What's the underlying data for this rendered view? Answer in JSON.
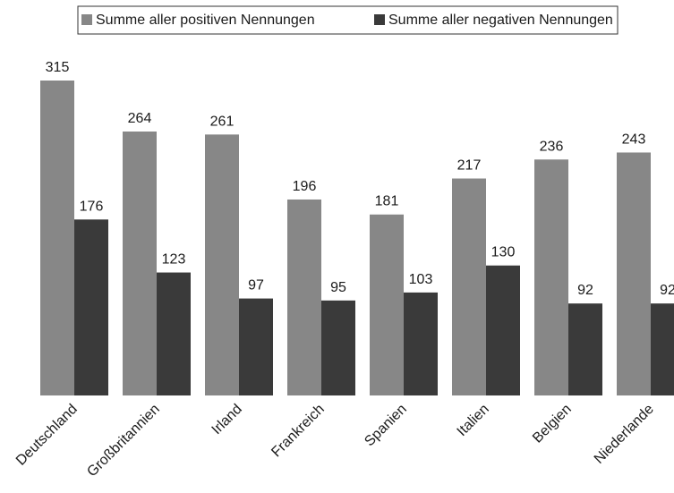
{
  "chart_data": {
    "type": "bar",
    "categories": [
      "Deutschland",
      "Großbritannien",
      "Irland",
      "Frankreich",
      "Spanien",
      "Italien",
      "Belgien",
      "Niederlande"
    ],
    "series": [
      {
        "name": "Summe aller positiven Nennungen",
        "color": "#878787",
        "values": [
          315,
          264,
          261,
          196,
          181,
          217,
          236,
          243
        ]
      },
      {
        "name": "Summe aller negativen Nennungen",
        "color": "#3a3a3a",
        "values": [
          176,
          123,
          97,
          95,
          103,
          130,
          92,
          92
        ]
      }
    ],
    "legend": "top"
  }
}
